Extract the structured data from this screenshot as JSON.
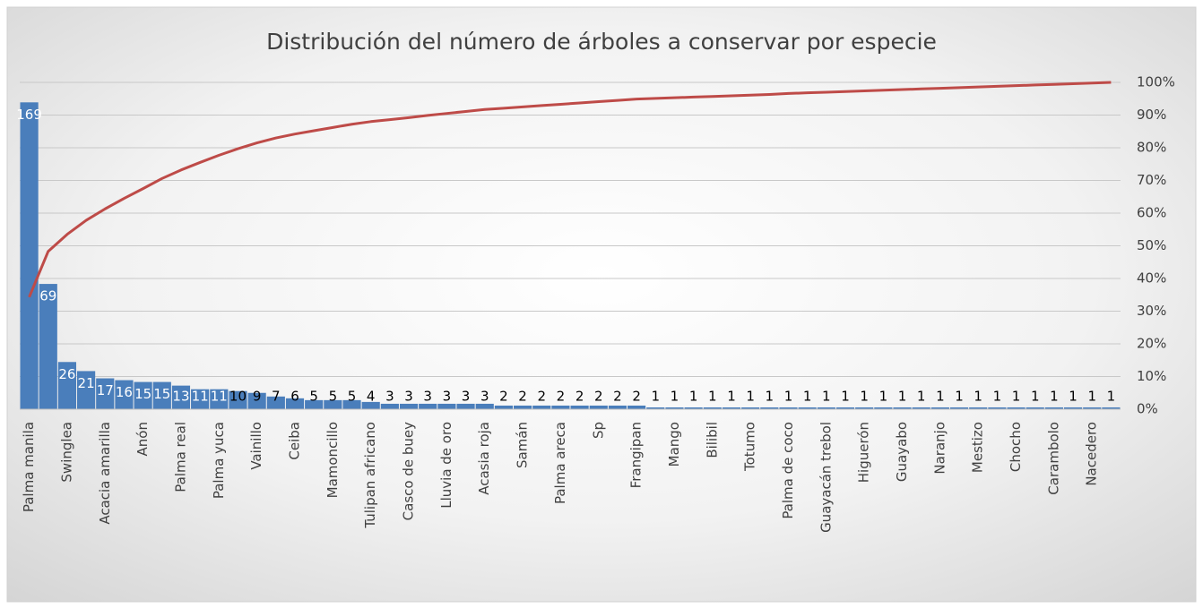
{
  "chart_data": {
    "type": "pareto",
    "title": "Distribución del número de árboles a conservar por especie",
    "categories": [
      "Palma manila",
      null,
      "Swinglea",
      null,
      "Acacia amarilla",
      null,
      "Anón",
      null,
      "Palma real",
      null,
      "Palma yuca",
      null,
      "Vainillo",
      null,
      "Ceiba",
      null,
      "Mamoncillo",
      null,
      "Tulipan africano",
      null,
      "Casco de buey",
      null,
      "Lluvia de oro",
      null,
      "Acasia roja",
      null,
      "Samán",
      null,
      "Palma areca",
      null,
      "Sp",
      null,
      "Frangipan",
      null,
      "Mango",
      null,
      "Bilibil",
      null,
      "Totumo",
      null,
      "Palma de coco",
      null,
      "Guayacán trebol",
      null,
      "Higuerón",
      null,
      "Guayabo",
      null,
      "Naranjo",
      null,
      "Mestizo",
      null,
      "Chocho",
      null,
      "Carambolo",
      null,
      "Nacedero",
      null
    ],
    "series": [
      {
        "color": "#4a7ebb",
        "values": [
          169,
          69,
          26,
          21,
          17,
          16,
          15,
          15,
          13,
          11,
          11,
          10,
          9,
          7,
          6,
          5,
          5,
          5,
          4,
          3,
          3,
          3,
          3,
          3,
          3,
          2,
          2,
          2,
          2,
          2,
          2,
          2,
          2,
          1,
          1,
          1,
          1,
          1,
          1,
          1,
          1,
          1,
          1,
          1,
          1,
          1,
          1,
          1,
          1,
          1,
          1,
          1,
          1,
          1,
          1,
          1,
          1,
          1
        ]
      },
      {
        "color": "#be4b48",
        "axis": "y2",
        "values": [
          34.3,
          48.3,
          53.5,
          57.8,
          61.3,
          64.5,
          67.5,
          70.6,
          73.2,
          75.5,
          77.7,
          79.7,
          81.5,
          83.0,
          84.2,
          85.2,
          86.2,
          87.2,
          88.0,
          88.6,
          89.2,
          89.9,
          90.5,
          91.1,
          91.7,
          92.1,
          92.5,
          92.9,
          93.3,
          93.7,
          94.1,
          94.5,
          94.9,
          95.1,
          95.3,
          95.5,
          95.7,
          95.9,
          96.1,
          96.3,
          96.6,
          96.8,
          97.0,
          97.2,
          97.4,
          97.6,
          97.8,
          98.0,
          98.2,
          98.4,
          98.6,
          98.8,
          99.0,
          99.2,
          99.4,
          99.6,
          99.8,
          100.0
        ]
      }
    ],
    "ylim": [
      0,
      180
    ],
    "y2lim": [
      0,
      100
    ],
    "y2ticks": [
      {
        "value": 0,
        "label": "0%"
      },
      {
        "value": 10,
        "label": "10%"
      },
      {
        "value": 20,
        "label": "20%"
      },
      {
        "value": 30,
        "label": "30%"
      },
      {
        "value": 40,
        "label": "40%"
      },
      {
        "value": 50,
        "label": "50%"
      },
      {
        "value": 60,
        "label": "60%"
      },
      {
        "value": 70,
        "label": "70%"
      },
      {
        "value": 80,
        "label": "80%"
      },
      {
        "value": 90,
        "label": "90%"
      },
      {
        "value": 100,
        "label": "100%"
      }
    ],
    "grid": true
  }
}
